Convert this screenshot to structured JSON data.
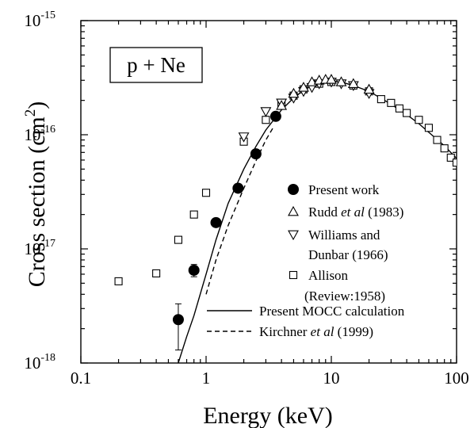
{
  "chart_data": {
    "type": "scatter",
    "title": "",
    "panel_label": "p + Ne",
    "xlabel": "Energy  (keV)",
    "ylabel_main": "Cross section  (cm",
    "ylabel_sup": "2",
    "ylabel_close": ")",
    "xscale": "log",
    "yscale": "log",
    "xlim": [
      0.1,
      100
    ],
    "ylim": [
      1e-18,
      1e-15
    ],
    "x_ticks": [
      {
        "value": 0.1,
        "label": "0.1"
      },
      {
        "value": 1,
        "label": "1"
      },
      {
        "value": 10,
        "label": "10"
      },
      {
        "value": 100,
        "label": "100"
      }
    ],
    "y_ticks": [
      {
        "value": 1e-18,
        "base": "10",
        "exp": "-18"
      },
      {
        "value": 1e-17,
        "base": "10",
        "exp": "-17"
      },
      {
        "value": 1e-16,
        "base": "10",
        "exp": "-16"
      },
      {
        "value": 1e-15,
        "base": "10",
        "exp": "-15"
      }
    ],
    "series": [
      {
        "name": "Present work",
        "marker": "filled-circle",
        "x": [
          0.6,
          0.8,
          1.2,
          1.8,
          2.5,
          3.6
        ],
        "y": [
          2.4e-18,
          6.5e-18,
          1.7e-17,
          3.4e-17,
          6.8e-17,
          1.45e-16
        ],
        "yerr_low": [
          1.1e-18,
          8e-19,
          1e-18,
          0,
          0,
          0
        ],
        "yerr_high": [
          9e-19,
          8e-19,
          1e-18,
          0,
          0,
          0
        ]
      },
      {
        "name": "Rudd et al (1983)",
        "marker": "triangle-up",
        "x": [
          4,
          5,
          6,
          7,
          8,
          9,
          10,
          12,
          15,
          20
        ],
        "y": [
          1.8e-16,
          2.3e-16,
          2.6e-16,
          2.9e-16,
          3e-16,
          3.05e-16,
          3.05e-16,
          2.9e-16,
          2.8e-16,
          2.5e-16
        ]
      },
      {
        "name": "Williams and Dunbar (1966)",
        "marker": "triangle-down",
        "x": [
          2,
          3,
          4,
          5,
          6,
          7,
          8,
          10,
          12,
          15,
          20
        ],
        "y": [
          9.6e-17,
          1.6e-16,
          1.9e-16,
          2.1e-16,
          2.4e-16,
          2.6e-16,
          2.8e-16,
          2.9e-16,
          2.8e-16,
          2.7e-16,
          2.3e-16
        ]
      },
      {
        "name": "Allison (Review:1958)",
        "marker": "open-square",
        "x": [
          0.2,
          0.4,
          0.6,
          0.8,
          1.0,
          2.0,
          3.0,
          4.0,
          5.0,
          6.0,
          8.0,
          10,
          15,
          20,
          25,
          30,
          35,
          40,
          50,
          60,
          70,
          80,
          90,
          100
        ],
        "y": [
          5.2e-18,
          6.1e-18,
          1.2e-17,
          2e-17,
          3.1e-17,
          8.7e-17,
          1.35e-16,
          1.85e-16,
          2.2e-16,
          2.5e-16,
          2.8e-16,
          2.9e-16,
          2.7e-16,
          2.4e-16,
          2.05e-16,
          1.9e-16,
          1.7e-16,
          1.55e-16,
          1.35e-16,
          1.15e-16,
          9e-17,
          7.6e-17,
          6.3e-17,
          5.7e-17
        ]
      },
      {
        "name": "Present MOCC calculation",
        "marker": "solid-line",
        "x": [
          0.6,
          0.7,
          0.8,
          1.0,
          1.2,
          1.5,
          2.0,
          2.5,
          3.0,
          4.0,
          5.0,
          6.0,
          7.0,
          8.0,
          10,
          12,
          15,
          20,
          30,
          40,
          50,
          60,
          80,
          100
        ],
        "y": [
          1e-18,
          1.7e-18,
          2.6e-18,
          6e-18,
          1.2e-17,
          2.5e-17,
          5e-17,
          7.9e-17,
          1.1e-16,
          1.65e-16,
          2.1e-16,
          2.45e-16,
          2.7e-16,
          2.85e-16,
          2.95e-16,
          2.9e-16,
          2.7e-16,
          2.4e-16,
          1.85e-16,
          1.5e-16,
          1.25e-16,
          1.05e-16,
          8e-17,
          6.2e-17
        ]
      },
      {
        "name": "Kirchner et al (1999)",
        "marker": "dashed-line",
        "x": [
          1.0,
          1.2,
          1.5,
          2.0,
          2.5,
          3.0,
          3.5
        ],
        "y": [
          4e-18,
          8e-18,
          1.6e-17,
          3.4e-17,
          5.9e-17,
          9e-17,
          1.2e-16
        ]
      }
    ],
    "legend": {
      "placement": "lower-right",
      "markers": [
        {
          "text_parts": [
            {
              "t": "Present work",
              "i": false
            }
          ]
        },
        {
          "text_parts": [
            {
              "t": "Rudd ",
              "i": false
            },
            {
              "t": "et al",
              "i": true
            },
            {
              "t": " (1983)",
              "i": false
            }
          ]
        },
        {
          "text_parts": [
            {
              "t": "Williams and",
              "i": false
            }
          ],
          "cont": "Dunbar (1966)"
        },
        {
          "text_parts": [
            {
              "t": "Allison",
              "i": false
            }
          ],
          "cont": "(Review:1958)"
        }
      ],
      "lines": [
        {
          "text_parts": [
            {
              "t": "Present MOCC calculation",
              "i": false
            }
          ]
        },
        {
          "text_parts": [
            {
              "t": "Kirchner ",
              "i": false
            },
            {
              "t": "et al",
              "i": true
            },
            {
              "t": " (1999)",
              "i": false
            }
          ]
        }
      ]
    },
    "grid": false
  }
}
